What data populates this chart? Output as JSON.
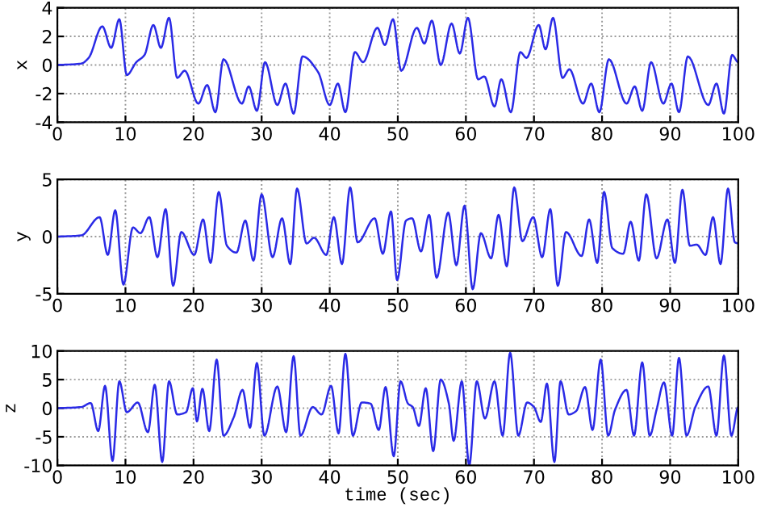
{
  "chart_data": [
    {
      "type": "line",
      "ylabel": "x",
      "xlim": [
        0,
        100
      ],
      "ylim": [
        -4,
        4
      ],
      "xticks": [
        0,
        10,
        20,
        30,
        40,
        50,
        60,
        70,
        80,
        90,
        100
      ],
      "yticks": [
        -4,
        -2,
        0,
        2,
        4
      ],
      "grid": true,
      "series": [
        {
          "color": "#2a2ae6",
          "x": [
            0,
            3.5,
            4.6,
            6.6,
            7.9,
            9.1,
            10.2,
            11.6,
            12.8,
            14.1,
            15.2,
            16.4,
            17.6,
            18.7,
            20.7,
            22,
            23.2,
            24.4,
            27.1,
            28.1,
            29.3,
            30.5,
            32.3,
            33.5,
            34.7,
            36,
            38.3,
            40,
            41.2,
            42.3,
            43.7,
            44.9,
            47,
            48.1,
            49.3,
            50.5,
            52.8,
            53.9,
            55,
            56.3,
            57.9,
            59.1,
            60.3,
            61.8,
            62.7,
            64.2,
            65.2,
            66.6,
            68,
            68.9,
            70.7,
            71.7,
            72.8,
            74.2,
            75.2,
            77.2,
            78.4,
            79.6,
            81,
            83.6,
            84.8,
            85.9,
            87.2,
            89,
            90.2,
            91.3,
            92.6,
            95.6,
            96.8,
            97.9,
            99.1,
            100
          ],
          "values": [
            0,
            0.1,
            0.5,
            2.7,
            1.2,
            3.2,
            -0.7,
            0.2,
            0.7,
            2.8,
            1.2,
            3.3,
            -0.9,
            -0.4,
            -2.7,
            -1.4,
            -3.3,
            0.4,
            -2.7,
            -1.5,
            -3.2,
            0.2,
            -2.8,
            -1.3,
            -3.4,
            0.6,
            -0.5,
            -2.8,
            -1.3,
            -3.3,
            0.9,
            0.2,
            2.6,
            1.4,
            3.2,
            -0.4,
            2.6,
            1.5,
            3.1,
            0.0,
            2.9,
            0.8,
            3.3,
            -1.0,
            -0.8,
            -2.9,
            -1.0,
            -3.3,
            0.9,
            0.5,
            2.8,
            1.1,
            3.3,
            -0.9,
            -0.3,
            -2.7,
            -1.3,
            -3.3,
            0.4,
            -2.7,
            -1.5,
            -3.2,
            0.2,
            -2.7,
            -1.3,
            -3.3,
            0.6,
            -2.8,
            -1.3,
            -3.4,
            0.7,
            0.2
          ]
        }
      ]
    },
    {
      "type": "line",
      "ylabel": "y",
      "xlim": [
        0,
        100
      ],
      "ylim": [
        -5,
        5
      ],
      "xticks": [
        0,
        10,
        20,
        30,
        40,
        50,
        60,
        70,
        80,
        90,
        100
      ],
      "yticks": [
        -5,
        0,
        5
      ],
      "grid": true,
      "series": [
        {
          "color": "#2a2ae6",
          "x": [
            0,
            3.5,
            6.2,
            7.4,
            8.5,
            9.7,
            11.1,
            12.2,
            13.5,
            14.7,
            15.9,
            17,
            18.2,
            20.1,
            21.4,
            22.5,
            23.7,
            24.9,
            26.3,
            27.6,
            28.8,
            30,
            31.6,
            33,
            34.2,
            35.2,
            36.6,
            37.7,
            39.5,
            40.6,
            41.8,
            43,
            44.1,
            46.6,
            47.8,
            49,
            49.9,
            51.2,
            52.1,
            53.4,
            54.6,
            55.7,
            57.4,
            58.6,
            59.8,
            61,
            62.2,
            63.7,
            64.8,
            66,
            67.1,
            68.3,
            69.9,
            71.2,
            72.4,
            73.5,
            74.7,
            77,
            78.1,
            79.3,
            80.3,
            81.5,
            83.1,
            84.2,
            85.4,
            86.5,
            88,
            89.6,
            90.7,
            91.8,
            92.9,
            93.9,
            95.2,
            96.3,
            97.4,
            98.5,
            99.5,
            100
          ],
          "values": [
            0,
            0.1,
            1.7,
            -1.6,
            2.3,
            -4.2,
            0.8,
            0.3,
            1.7,
            -1.8,
            2.4,
            -4.3,
            0.4,
            -1.6,
            1.5,
            -2.3,
            3.9,
            -0.8,
            -1.4,
            1.4,
            -2.1,
            3.7,
            -1.8,
            1.6,
            -2.4,
            4.2,
            -0.6,
            -0.1,
            -1.6,
            1.7,
            -2.4,
            4.3,
            -0.5,
            1.6,
            -1.5,
            2.2,
            -3.8,
            1.4,
            1.6,
            -1.3,
            1.9,
            -3.6,
            2.1,
            -2.5,
            2.7,
            -4.6,
            0.3,
            -1.9,
            1.9,
            -2.6,
            4.3,
            -0.4,
            1.7,
            -1.8,
            2.4,
            -4.3,
            0.4,
            -1.7,
            1.5,
            -2.3,
            3.9,
            -1.0,
            -1.5,
            1.3,
            -2.1,
            3.7,
            -1.9,
            1.5,
            -2.3,
            4.1,
            -0.8,
            -0.7,
            -1.6,
            1.7,
            -2.4,
            4.2,
            -0.5,
            -0.6
          ]
        }
      ]
    },
    {
      "type": "line",
      "ylabel": "z",
      "xlabel": "time (sec)",
      "xlim": [
        0,
        100
      ],
      "ylim": [
        -10,
        10
      ],
      "xticks": [
        0,
        10,
        20,
        30,
        40,
        50,
        60,
        70,
        80,
        90,
        100
      ],
      "yticks": [
        -10,
        -5,
        0,
        5,
        10
      ],
      "grid": true,
      "series": [
        {
          "color": "#2a2ae6",
          "x": [
            0,
            3.5,
            4.9,
            6,
            7,
            8.1,
            9.1,
            10.2,
            11.8,
            13.3,
            14.3,
            15.4,
            16.4,
            17.6,
            18.9,
            19.9,
            20.5,
            21.3,
            22.3,
            23.4,
            24.4,
            25.9,
            27.2,
            28.3,
            29.3,
            30.4,
            32.3,
            33.6,
            34.7,
            35.7,
            37.5,
            38.8,
            40.2,
            41.3,
            42.3,
            43.4,
            44.7,
            46,
            47.2,
            48.2,
            49.4,
            50.4,
            51.5,
            52.2,
            53.1,
            54.1,
            55.2,
            56.3,
            57.5,
            58.2,
            59.4,
            60.5,
            61.6,
            62.8,
            64.2,
            65.4,
            66.5,
            67.7,
            69,
            70,
            71,
            71.9,
            73,
            73.9,
            75.1,
            76.2,
            77.5,
            78.6,
            79.8,
            80.9,
            81.9,
            83.6,
            84.7,
            85.9,
            87,
            88,
            89.1,
            90.3,
            91.3,
            92.4,
            93.7,
            95.6,
            96.8,
            97.9,
            99,
            100
          ],
          "values": [
            0,
            0.2,
            0.9,
            -4,
            3.9,
            -9.2,
            4.7,
            -0.7,
            1,
            -4.2,
            4.1,
            -9.4,
            4.7,
            -1.1,
            -0.7,
            3.5,
            -2.3,
            3.4,
            -4,
            8.5,
            -4.8,
            -1.6,
            3.2,
            -3.4,
            7.9,
            -4.8,
            3.8,
            -4.2,
            9.1,
            -4.8,
            0.2,
            -1.1,
            3.9,
            -4.4,
            9.5,
            -4.8,
            1,
            0.8,
            -3.8,
            3.7,
            -8.4,
            4.7,
            0.8,
            0.2,
            -3.1,
            3.5,
            -7.5,
            5,
            0.8,
            -5.7,
            4.7,
            -10,
            4.7,
            -1.8,
            4.7,
            -4.8,
            9.7,
            -4.8,
            1,
            0.2,
            -2.4,
            4.3,
            -9.4,
            4.7,
            -1.1,
            -0.5,
            3.7,
            -3.8,
            8.5,
            -4.8,
            -0.3,
            3.2,
            -4.8,
            8,
            -4.8,
            -0.3,
            4.5,
            -4.8,
            8.8,
            -4.8,
            0.2,
            3.8,
            -4.8,
            9.2,
            -4.8,
            0.2
          ]
        }
      ]
    }
  ]
}
